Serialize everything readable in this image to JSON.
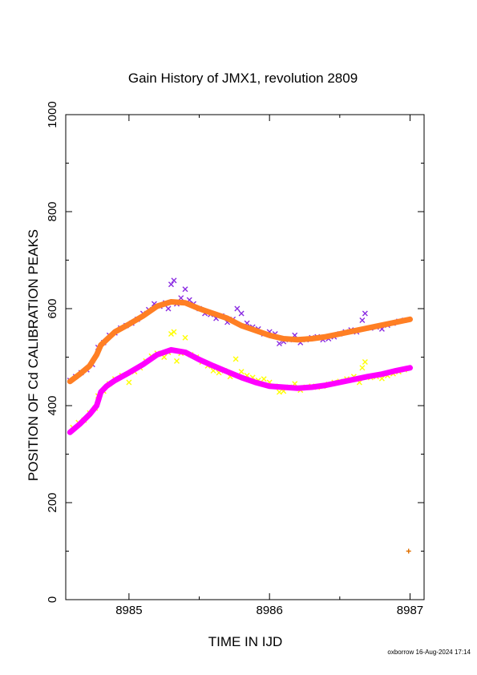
{
  "chart_data": {
    "type": "scatter",
    "title": "Gain History of JMX1, revolution 2809",
    "xlabel": "TIME IN IJD",
    "ylabel": "POSITION OF Cd CALIBRATION PEAKS",
    "xlim": [
      8984.55,
      8987.1
    ],
    "ylim": [
      0,
      1000
    ],
    "x_ticks": [
      "8985",
      "8986",
      "8987"
    ],
    "y_ticks": [
      "0",
      "200",
      "400",
      "600",
      "800",
      "1000"
    ],
    "grid": false,
    "legend": "none",
    "series": [
      {
        "color": "#8a2be2",
        "marker": "x",
        "points": [
          [
            8984.58,
            452
          ],
          [
            8984.62,
            460
          ],
          [
            8984.66,
            468
          ],
          [
            8984.7,
            474
          ],
          [
            8984.74,
            485
          ],
          [
            8984.78,
            520
          ],
          [
            8984.82,
            530
          ],
          [
            8984.86,
            545
          ],
          [
            8984.9,
            550
          ],
          [
            8984.94,
            560
          ],
          [
            8984.98,
            565
          ],
          [
            8985.02,
            570
          ],
          [
            8985.06,
            578
          ],
          [
            8985.1,
            590
          ],
          [
            8985.14,
            598
          ],
          [
            8985.18,
            610
          ],
          [
            8985.22,
            605
          ],
          [
            8985.26,
            612
          ],
          [
            8985.28,
            600
          ],
          [
            8985.3,
            650
          ],
          [
            8985.32,
            658
          ],
          [
            8985.34,
            610
          ],
          [
            8985.37,
            622
          ],
          [
            8985.4,
            640
          ],
          [
            8985.43,
            618
          ],
          [
            8985.46,
            610
          ],
          [
            8985.5,
            600
          ],
          [
            8985.54,
            590
          ],
          [
            8985.58,
            588
          ],
          [
            8985.62,
            580
          ],
          [
            8985.66,
            585
          ],
          [
            8985.7,
            572
          ],
          [
            8985.74,
            578
          ],
          [
            8985.77,
            600
          ],
          [
            8985.8,
            590
          ],
          [
            8985.84,
            570
          ],
          [
            8985.88,
            562
          ],
          [
            8985.92,
            558
          ],
          [
            8985.96,
            548
          ],
          [
            8986.0,
            552
          ],
          [
            8986.04,
            548
          ],
          [
            8986.07,
            528
          ],
          [
            8986.1,
            532
          ],
          [
            8986.14,
            536
          ],
          [
            8986.18,
            545
          ],
          [
            8986.22,
            530
          ],
          [
            8986.26,
            536
          ],
          [
            8986.3,
            540
          ],
          [
            8986.34,
            542
          ],
          [
            8986.38,
            536
          ],
          [
            8986.42,
            538
          ],
          [
            8986.46,
            542
          ],
          [
            8986.5,
            548
          ],
          [
            8986.54,
            552
          ],
          [
            8986.58,
            556
          ],
          [
            8986.62,
            552
          ],
          [
            8986.66,
            576
          ],
          [
            8986.68,
            590
          ],
          [
            8986.72,
            560
          ],
          [
            8986.76,
            562
          ],
          [
            8986.8,
            558
          ],
          [
            8986.84,
            566
          ],
          [
            8986.88,
            570
          ],
          [
            8986.92,
            574
          ],
          [
            8986.96,
            576
          ]
        ]
      },
      {
        "color": "#ff7f24",
        "marker": "curve",
        "points": [
          [
            8984.58,
            450
          ],
          [
            8984.65,
            465
          ],
          [
            8984.72,
            482
          ],
          [
            8984.77,
            505
          ],
          [
            8984.8,
            525
          ],
          [
            8984.9,
            552
          ],
          [
            8985.0,
            568
          ],
          [
            8985.1,
            585
          ],
          [
            8985.2,
            605
          ],
          [
            8985.3,
            614
          ],
          [
            8985.4,
            612
          ],
          [
            8985.5,
            600
          ],
          [
            8985.6,
            590
          ],
          [
            8985.7,
            580
          ],
          [
            8985.8,
            565
          ],
          [
            8985.9,
            555
          ],
          [
            8986.0,
            545
          ],
          [
            8986.1,
            538
          ],
          [
            8986.2,
            536
          ],
          [
            8986.3,
            538
          ],
          [
            8986.4,
            542
          ],
          [
            8986.5,
            548
          ],
          [
            8986.6,
            554
          ],
          [
            8986.7,
            560
          ],
          [
            8986.8,
            566
          ],
          [
            8986.9,
            572
          ],
          [
            8987.0,
            578
          ]
        ]
      },
      {
        "color": "#ffff00",
        "marker": "x",
        "points": [
          [
            8984.6,
            355
          ],
          [
            8984.64,
            365
          ],
          [
            8984.68,
            370
          ],
          [
            8984.72,
            385
          ],
          [
            8984.76,
            395
          ],
          [
            8984.78,
            420
          ],
          [
            8984.82,
            430
          ],
          [
            8984.86,
            445
          ],
          [
            8984.9,
            455
          ],
          [
            8984.95,
            462
          ],
          [
            8985.0,
            448
          ],
          [
            8985.04,
            470
          ],
          [
            8985.08,
            478
          ],
          [
            8985.12,
            492
          ],
          [
            8985.16,
            502
          ],
          [
            8985.2,
            508
          ],
          [
            8985.25,
            500
          ],
          [
            8985.28,
            510
          ],
          [
            8985.3,
            548
          ],
          [
            8985.32,
            552
          ],
          [
            8985.34,
            492
          ],
          [
            8985.37,
            508
          ],
          [
            8985.4,
            540
          ],
          [
            8985.44,
            505
          ],
          [
            8985.48,
            500
          ],
          [
            8985.52,
            490
          ],
          [
            8985.56,
            482
          ],
          [
            8985.6,
            472
          ],
          [
            8985.64,
            468
          ],
          [
            8985.68,
            472
          ],
          [
            8985.72,
            460
          ],
          [
            8985.76,
            496
          ],
          [
            8985.8,
            470
          ],
          [
            8985.84,
            462
          ],
          [
            8985.88,
            458
          ],
          [
            8985.92,
            452
          ],
          [
            8985.96,
            455
          ],
          [
            8986.0,
            448
          ],
          [
            8986.04,
            440
          ],
          [
            8986.07,
            428
          ],
          [
            8986.1,
            430
          ],
          [
            8986.14,
            438
          ],
          [
            8986.18,
            445
          ],
          [
            8986.22,
            432
          ],
          [
            8986.26,
            438
          ],
          [
            8986.3,
            440
          ],
          [
            8986.34,
            438
          ],
          [
            8986.38,
            440
          ],
          [
            8986.42,
            444
          ],
          [
            8986.46,
            448
          ],
          [
            8986.5,
            450
          ],
          [
            8986.55,
            455
          ],
          [
            8986.6,
            460
          ],
          [
            8986.64,
            448
          ],
          [
            8986.66,
            478
          ],
          [
            8986.68,
            490
          ],
          [
            8986.72,
            458
          ],
          [
            8986.76,
            460
          ],
          [
            8986.8,
            456
          ],
          [
            8986.84,
            462
          ],
          [
            8986.88,
            466
          ],
          [
            8986.92,
            470
          ],
          [
            8986.96,
            474
          ]
        ]
      },
      {
        "color": "#ff00ff",
        "marker": "curve",
        "points": [
          [
            8984.58,
            345
          ],
          [
            8984.65,
            362
          ],
          [
            8984.72,
            382
          ],
          [
            8984.77,
            400
          ],
          [
            8984.8,
            428
          ],
          [
            8984.84,
            440
          ],
          [
            8984.9,
            452
          ],
          [
            8985.0,
            468
          ],
          [
            8985.1,
            485
          ],
          [
            8985.2,
            505
          ],
          [
            8985.3,
            515
          ],
          [
            8985.4,
            510
          ],
          [
            8985.5,
            495
          ],
          [
            8985.6,
            482
          ],
          [
            8985.7,
            470
          ],
          [
            8985.8,
            458
          ],
          [
            8985.9,
            448
          ],
          [
            8986.0,
            440
          ],
          [
            8986.1,
            438
          ],
          [
            8986.2,
            436
          ],
          [
            8986.3,
            438
          ],
          [
            8986.4,
            442
          ],
          [
            8986.5,
            448
          ],
          [
            8986.6,
            454
          ],
          [
            8986.7,
            460
          ],
          [
            8986.8,
            465
          ],
          [
            8986.9,
            472
          ],
          [
            8987.0,
            478
          ]
        ]
      },
      {
        "color": "#e07000",
        "marker": "+",
        "points": [
          [
            8986.99,
            100
          ]
        ]
      }
    ]
  },
  "footer": {
    "text": "oxborrow 16-Aug-2024 17:14"
  }
}
